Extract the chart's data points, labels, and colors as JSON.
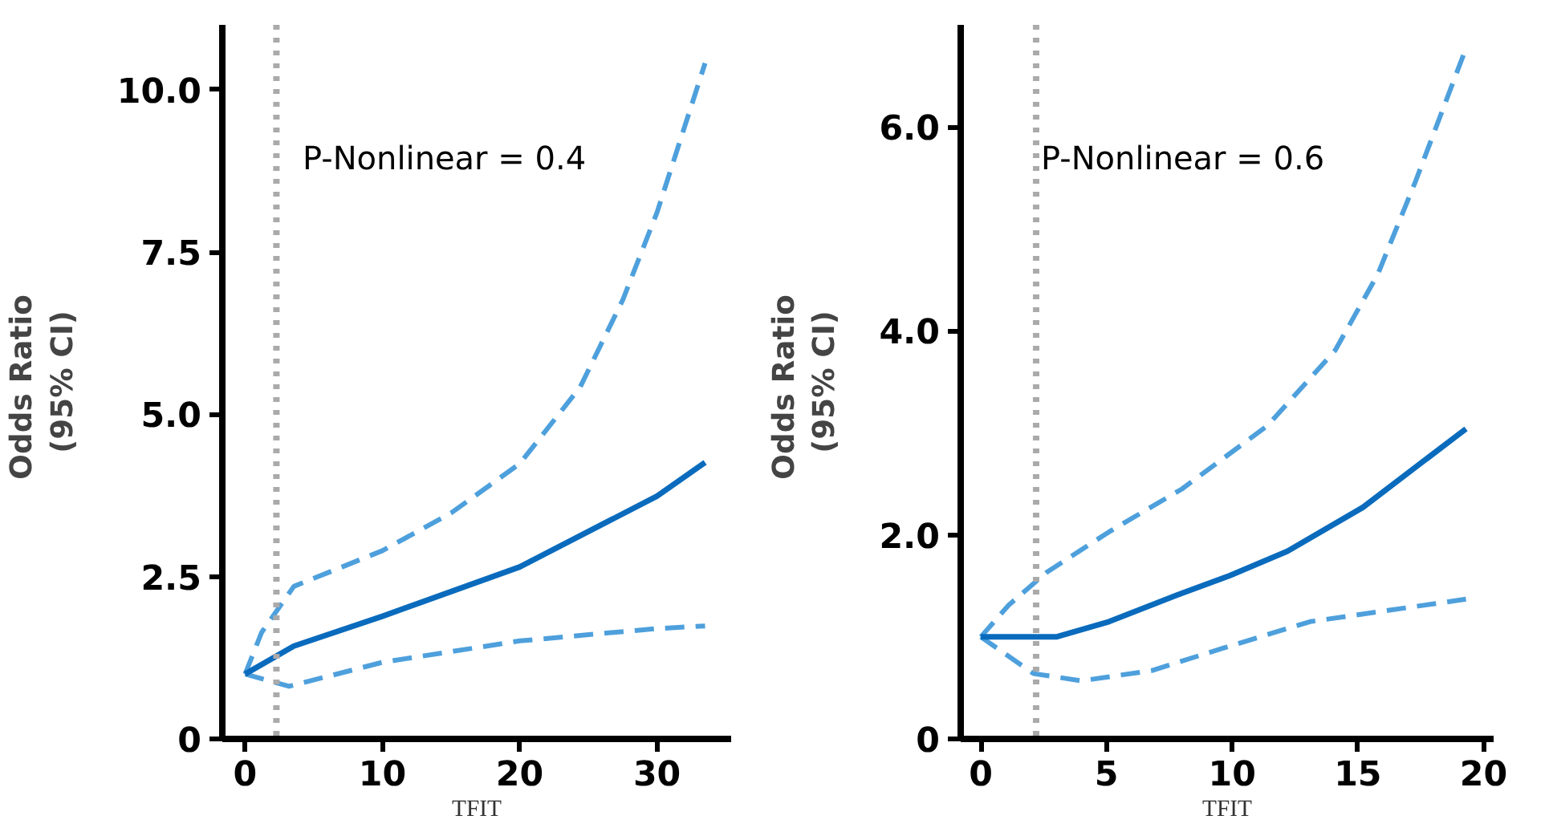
{
  "chart_data": [
    {
      "type": "line",
      "xlabel": "TFIT",
      "ylabel": "Odds  Ratio\n(95% CI)",
      "xlim": [
        -1.66,
        35.4
      ],
      "ylim": [
        0,
        11
      ],
      "xticks": [
        0,
        10,
        20,
        30
      ],
      "yticks": [
        {
          "value": 0,
          "label": "0"
        },
        2.5,
        {
          "value": 5,
          "label": "5.0"
        },
        7.5,
        {
          "value": 10,
          "label": "10.0"
        }
      ],
      "grid": false,
      "annotations": [
        "P-Nonlinear = 0.4"
      ],
      "ref_lines": [
        {
          "axis": "x",
          "value": 2.28,
          "label": null,
          "color": "#aaaaaa",
          "line_style": "dotted"
        }
      ],
      "series": [
        {
          "color": "#4ea0dc",
          "line_style": "dashed",
          "x": [
            0,
            1.2,
            3.55,
            10,
            15,
            20,
            24.4,
            27.5,
            30,
            33.5
          ],
          "values": [
            1.0,
            1.64,
            2.35,
            2.9,
            3.48,
            4.24,
            5.42,
            6.76,
            8.11,
            10.41
          ]
        },
        {
          "color": "#4ea0dc",
          "line_style": "dashed",
          "x": [
            0,
            3.2,
            10,
            20,
            30,
            33.5
          ],
          "values": [
            1.0,
            0.81,
            1.18,
            1.51,
            1.7,
            1.74
          ]
        },
        {
          "color": "#0a6bbd",
          "line_style": "solid",
          "x": [
            0,
            3.55,
            10,
            20,
            30,
            33.5
          ],
          "values": [
            1.0,
            1.43,
            1.89,
            2.65,
            3.74,
            4.26
          ]
        }
      ]
    },
    {
      "type": "line",
      "xlabel": "TFIT",
      "ylabel": "Odds  Ratio\n(95% CI)",
      "xlim": [
        -0.8,
        20.4
      ],
      "ylim": [
        0,
        7.0
      ],
      "xticks": [
        0,
        5,
        10,
        15,
        20
      ],
      "yticks": [
        {
          "value": 0,
          "label": "0"
        },
        {
          "value": 2,
          "label": "2.0"
        },
        {
          "value": 4,
          "label": "4.0"
        },
        {
          "value": 6,
          "label": "6.0"
        }
      ],
      "grid": false,
      "annotations": [
        "P-Nonlinear = 0.6"
      ],
      "ref_lines": [
        {
          "axis": "x",
          "value": 2.2,
          "label": null,
          "color": "#aaaaaa",
          "line_style": "dotted"
        }
      ],
      "series": [
        {
          "color": "#4ea0dc",
          "line_style": "dashed",
          "x": [
            0,
            1.1,
            2.6,
            5.1,
            8.0,
            11.4,
            14.1,
            15.8,
            17.3,
            19.3
          ],
          "values": [
            1.0,
            1.31,
            1.63,
            2.03,
            2.45,
            3.07,
            3.81,
            4.56,
            5.47,
            6.77
          ]
        },
        {
          "color": "#4ea0dc",
          "line_style": "dashed",
          "x": [
            0,
            2.1,
            4.0,
            6.8,
            9.9,
            13.1,
            19.3
          ],
          "values": [
            1.0,
            0.64,
            0.57,
            0.67,
            0.91,
            1.15,
            1.37
          ]
        },
        {
          "color": "#0a6bbd",
          "line_style": "solid",
          "x": [
            0,
            3.0,
            5.1,
            7.8,
            9.9,
            12.2,
            15.2,
            19.3
          ],
          "values": [
            1.0,
            1.0,
            1.15,
            1.41,
            1.6,
            1.84,
            2.27,
            3.04
          ]
        }
      ]
    }
  ]
}
